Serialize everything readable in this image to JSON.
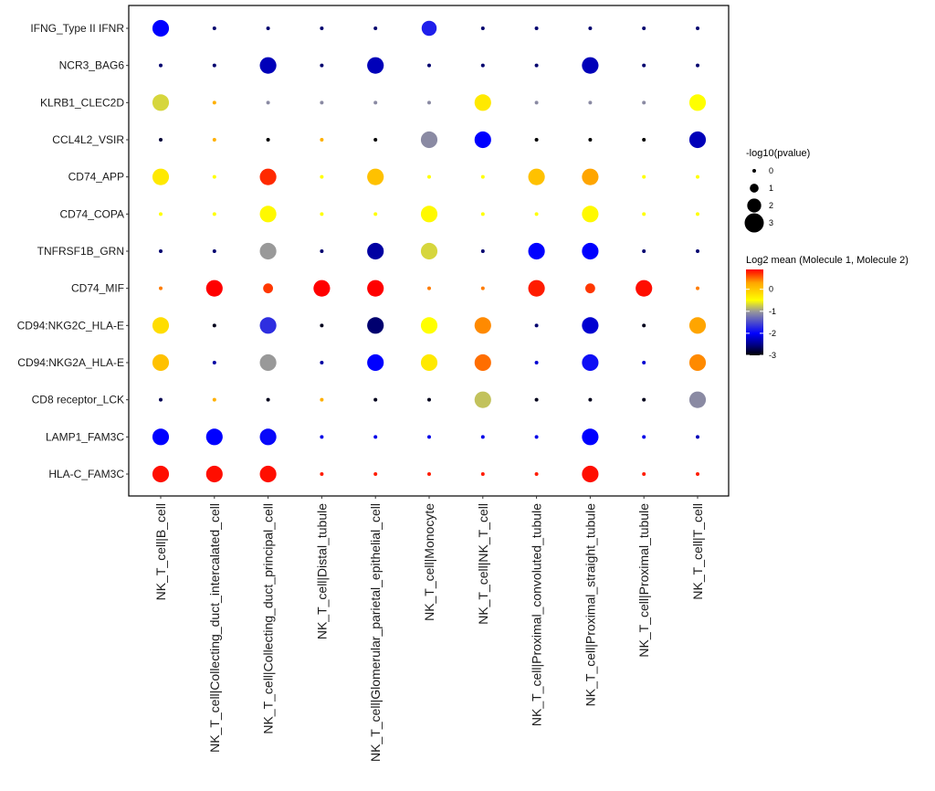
{
  "chart_data": {
    "type": "dotplot",
    "title": "",
    "xlabel": "",
    "ylabel": "",
    "categories_x": [
      "NK_T_cell|B_cell",
      "NK_T_cell|Collecting_duct_intercalated_cell",
      "NK_T_cell|Collecting_duct_principal_cell",
      "NK_T_cell|Distal_tubule",
      "NK_T_cell|Glomerular_parietal_epithelial_cell",
      "NK_T_cell|Monocyte",
      "NK_T_cell|NK_T_cell",
      "NK_T_cell|Proximal_convoluted_tubule",
      "NK_T_cell|Proximal_straight_tubule",
      "NK_T_cell|Proximal_tubule",
      "NK_T_cell|T_cell"
    ],
    "categories_y": [
      "IFNG_Type II IFNR",
      "NCR3_BAG6",
      "KLRB1_CLEC2D",
      "CCL4L2_VSIR",
      "CD74_APP",
      "CD74_COPA",
      "TNFRSF1B_GRN",
      "CD74_MIF",
      "CD94:NKG2C_HLA-E",
      "CD94:NKG2A_HLA-E",
      "CD8 receptor_LCK",
      "LAMP1_FAM3C",
      "HLA-C_FAM3C"
    ],
    "size_legend": {
      "title": "-log10(pvalue)",
      "values": [
        0,
        1,
        2,
        3
      ],
      "range": [
        0,
        3
      ]
    },
    "color_legend": {
      "title": "Log2 mean (Molecule 1, Molecule 2)",
      "ticks": [
        0,
        -1,
        -2,
        -3
      ],
      "range": [
        -3,
        0.9
      ],
      "stops": [
        {
          "value": -3,
          "color": "#000000"
        },
        {
          "value": -2.5,
          "color": "#00008b"
        },
        {
          "value": -2,
          "color": "#0000ff"
        },
        {
          "value": -1,
          "color": "#999999"
        },
        {
          "value": -0.5,
          "color": "#ffff00"
        },
        {
          "value": 0.3,
          "color": "#ffa500"
        },
        {
          "value": 0.9,
          "color": "#ff0000"
        }
      ]
    },
    "pvalue": [
      [
        2.5,
        0,
        0,
        0,
        0,
        2.2,
        0,
        0,
        0,
        0,
        0
      ],
      [
        0,
        0,
        2.5,
        0,
        2.5,
        0,
        0,
        0,
        2.5,
        0,
        0
      ],
      [
        2.5,
        0,
        0,
        0,
        0,
        0,
        2.5,
        0,
        0,
        0,
        2.5
      ],
      [
        0,
        0,
        0,
        0,
        0,
        2.5,
        2.5,
        0,
        0,
        0,
        2.5
      ],
      [
        2.5,
        0,
        2.5,
        0,
        2.5,
        0,
        0,
        2.5,
        2.5,
        0,
        0
      ],
      [
        0,
        0,
        2.5,
        0,
        0,
        2.5,
        0,
        0,
        2.5,
        0,
        0
      ],
      [
        0,
        0,
        2.5,
        0,
        2.5,
        2.5,
        0,
        2.5,
        2.5,
        0,
        0
      ],
      [
        0,
        2.5,
        1.2,
        2.5,
        2.5,
        0,
        0,
        2.5,
        1.2,
        2.5,
        0
      ],
      [
        2.5,
        0,
        2.5,
        0,
        2.5,
        2.5,
        2.5,
        0,
        2.5,
        0,
        2.5
      ],
      [
        2.5,
        0,
        2.5,
        0,
        2.5,
        2.5,
        2.5,
        0,
        2.5,
        0,
        2.5
      ],
      [
        0,
        0,
        0,
        0,
        0,
        0,
        2.5,
        0,
        0,
        0,
        2.5
      ],
      [
        2.5,
        2.5,
        2.5,
        0,
        0,
        0,
        0,
        0,
        2.5,
        0,
        0
      ],
      [
        2.5,
        2.5,
        2.5,
        0,
        0,
        0,
        0,
        0,
        2.5,
        0,
        0
      ]
    ],
    "log2mean": [
      [
        -2.0,
        -2.6,
        -2.6,
        -2.6,
        -2.6,
        -1.8,
        -2.6,
        -2.6,
        -2.6,
        -2.6,
        -2.6
      ],
      [
        -2.6,
        -2.6,
        -2.3,
        -2.6,
        -2.3,
        -2.6,
        -2.6,
        -2.6,
        -2.3,
        -2.6,
        -2.6
      ],
      [
        -0.7,
        0.2,
        -1.1,
        -1.1,
        -1.1,
        -1.1,
        -0.3,
        -1.1,
        -1.1,
        -1.1,
        -0.5
      ],
      [
        -2.8,
        0.2,
        -3.0,
        0.2,
        -3.0,
        -1.1,
        -2.0,
        -3.0,
        -3.0,
        -3.0,
        -2.3
      ],
      [
        -0.3,
        -0.5,
        0.75,
        -0.5,
        0.05,
        -0.5,
        -0.5,
        0.05,
        0.3,
        -0.5,
        -0.5
      ],
      [
        -0.5,
        -0.5,
        -0.45,
        -0.5,
        -0.5,
        -0.45,
        -0.5,
        -0.5,
        -0.45,
        -0.5,
        -0.5
      ],
      [
        -2.6,
        -2.6,
        -1.0,
        -2.6,
        -2.4,
        -0.7,
        -2.6,
        -2.0,
        -2.0,
        -2.6,
        -2.6
      ],
      [
        0.45,
        0.9,
        0.7,
        0.9,
        0.9,
        0.45,
        0.45,
        0.8,
        0.7,
        0.85,
        0.45
      ],
      [
        -0.2,
        -2.9,
        -1.7,
        -2.9,
        -2.6,
        -0.5,
        0.4,
        -2.6,
        -2.2,
        -2.9,
        0.3
      ],
      [
        0.05,
        -2.4,
        -1.0,
        -2.4,
        -2.0,
        -0.3,
        0.5,
        -2.2,
        -1.9,
        -2.2,
        0.4
      ],
      [
        -2.7,
        0.2,
        -2.9,
        0.2,
        -2.9,
        -2.9,
        -0.8,
        -2.9,
        -2.9,
        -2.9,
        -1.1
      ],
      [
        -2.0,
        -2.0,
        -1.95,
        -2.1,
        -2.1,
        -2.1,
        -2.1,
        -2.1,
        -2.0,
        -2.1,
        -2.3
      ],
      [
        0.85,
        0.85,
        0.85,
        0.8,
        0.8,
        0.8,
        0.8,
        0.8,
        0.85,
        0.8,
        0.8
      ]
    ]
  }
}
